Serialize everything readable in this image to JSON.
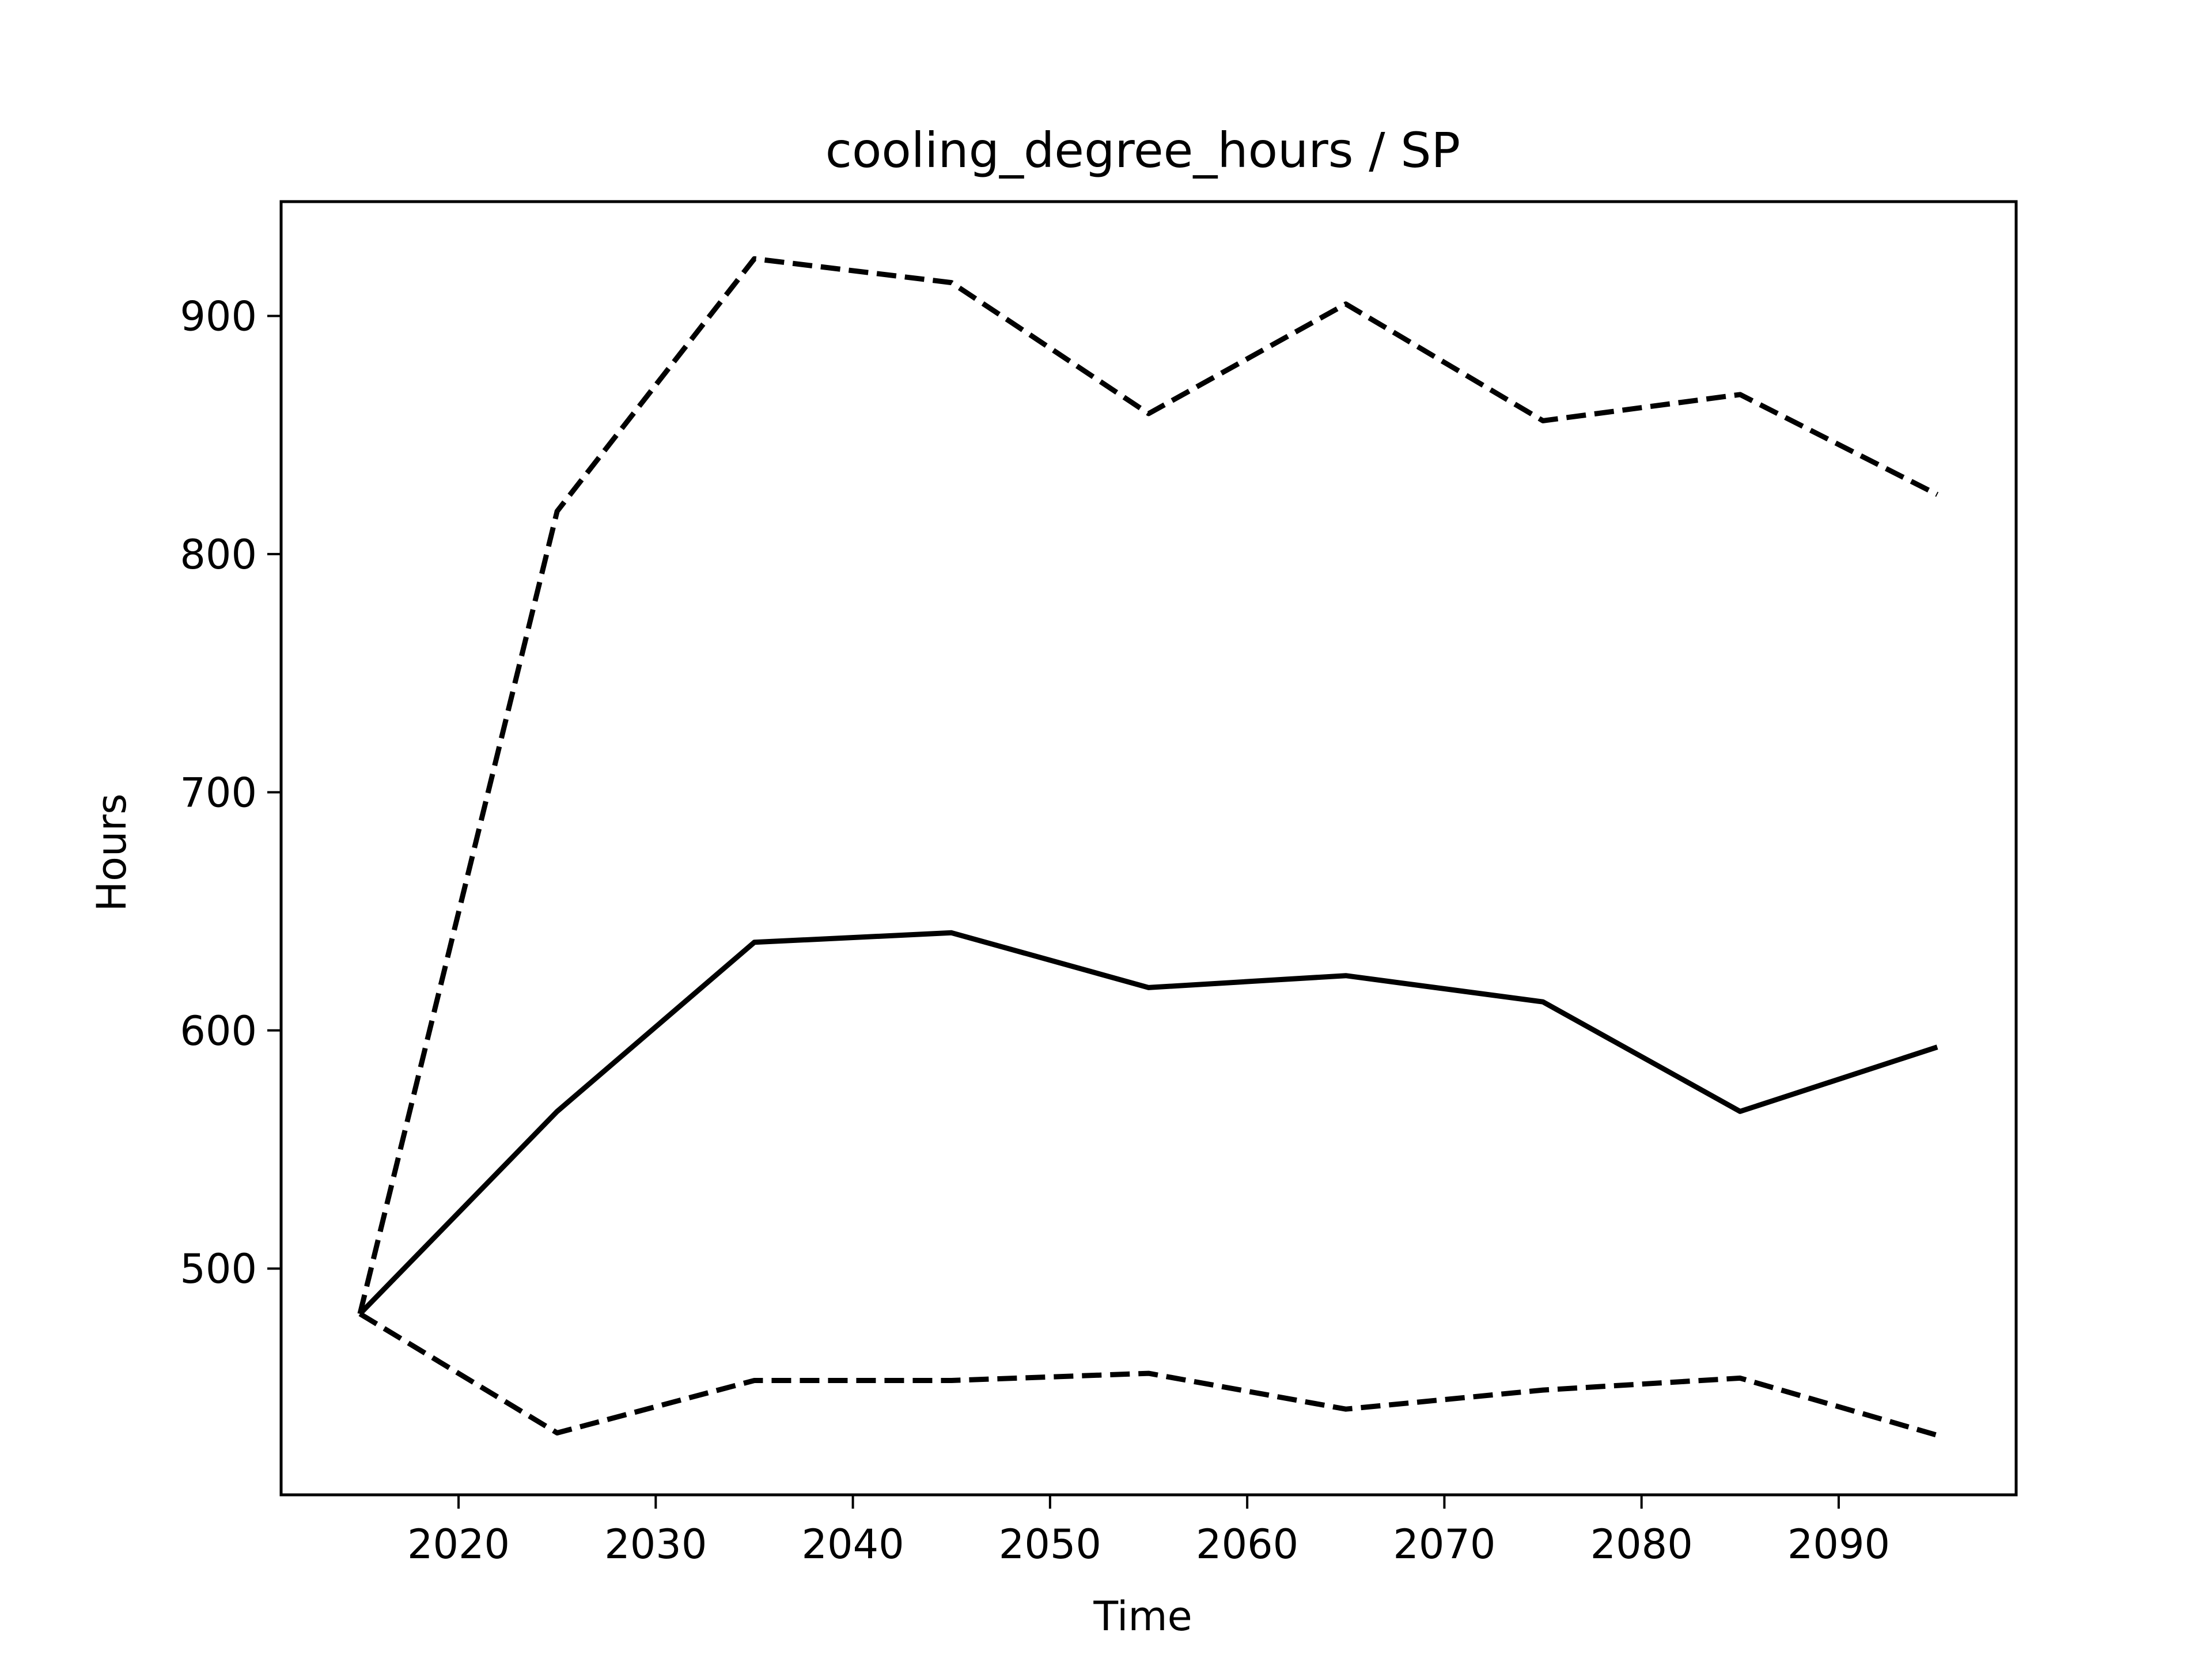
{
  "chart_data": {
    "type": "line",
    "title": "cooling_degree_hours / SP",
    "xlabel": "Time",
    "ylabel": "Hours",
    "xlim": [
      2011,
      2099
    ],
    "ylim": [
      405,
      948
    ],
    "xticks": [
      2020,
      2030,
      2040,
      2050,
      2060,
      2070,
      2080,
      2090
    ],
    "yticks": [
      500,
      600,
      700,
      800,
      900
    ],
    "grid": false,
    "legend": "none",
    "x": [
      2015,
      2025,
      2035,
      2045,
      2055,
      2065,
      2075,
      2085,
      2095
    ],
    "series": [
      {
        "style": "solid",
        "color": "#000000",
        "values": [
          481,
          566,
          637,
          641,
          618,
          623,
          612,
          566,
          593
        ]
      },
      {
        "style": "dashed",
        "color": "#000000",
        "values": [
          481,
          818,
          924,
          914,
          859,
          905,
          856,
          867,
          825
        ]
      },
      {
        "style": "dashed",
        "color": "#000000",
        "values": [
          481,
          431,
          453,
          453,
          456,
          441,
          449,
          454,
          430
        ]
      }
    ]
  }
}
